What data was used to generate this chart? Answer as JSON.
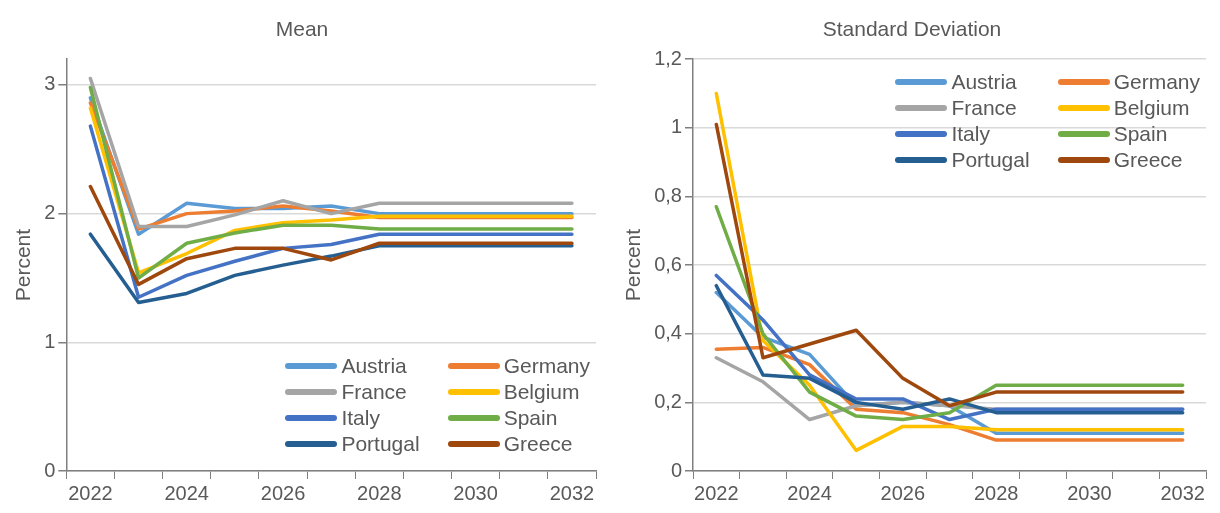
{
  "chart_data": [
    {
      "type": "line",
      "title": "Mean",
      "ylabel": "Percent",
      "categories": [
        "2022",
        null,
        "2024",
        null,
        "2026",
        null,
        "2028",
        null,
        "2030",
        null,
        "2032"
      ],
      "ylim": [
        0,
        3.2
      ],
      "yticks": [
        0,
        1,
        2,
        3
      ],
      "grid": "y",
      "legend": "bottom right",
      "series": [
        {
          "name": "Austria",
          "color": "#5b9bd5",
          "values": [
            2.9,
            1.84,
            2.08,
            2.04,
            2.04,
            2.06,
            2.0,
            2.0,
            2.0,
            2.0,
            2.0
          ]
        },
        {
          "name": "Germany",
          "color": "#ed7d31",
          "values": [
            2.86,
            1.88,
            2.0,
            2.02,
            2.06,
            2.02,
            1.97,
            1.97,
            1.97,
            1.97,
            1.97
          ]
        },
        {
          "name": "France",
          "color": "#a5a5a5",
          "values": [
            3.05,
            1.9,
            1.9,
            1.99,
            2.1,
            2.0,
            2.08,
            2.08,
            2.08,
            2.08,
            2.08
          ]
        },
        {
          "name": "Belgium",
          "color": "#ffc000",
          "values": [
            2.82,
            1.54,
            1.69,
            1.87,
            1.93,
            1.95,
            1.98,
            1.98,
            1.98,
            1.98,
            1.98
          ]
        },
        {
          "name": "Italy",
          "color": "#4472c4",
          "values": [
            2.68,
            1.35,
            1.52,
            1.63,
            1.73,
            1.76,
            1.84,
            1.84,
            1.84,
            1.84,
            1.84
          ]
        },
        {
          "name": "Spain",
          "color": "#70ad47",
          "values": [
            2.98,
            1.5,
            1.77,
            1.85,
            1.91,
            1.91,
            1.88,
            1.88,
            1.88,
            1.88,
            1.88
          ]
        },
        {
          "name": "Portugal",
          "color": "#255e91",
          "values": [
            1.84,
            1.31,
            1.38,
            1.52,
            1.6,
            1.67,
            1.75,
            1.75,
            1.75,
            1.75,
            1.75
          ]
        },
        {
          "name": "Greece",
          "color": "#9e480e",
          "values": [
            2.21,
            1.45,
            1.65,
            1.73,
            1.73,
            1.64,
            1.77,
            1.77,
            1.77,
            1.77,
            1.77
          ]
        }
      ]
    },
    {
      "type": "line",
      "title": "Standard Deviation",
      "ylabel": "Percent",
      "categories": [
        "2022",
        null,
        "2024",
        null,
        "2026",
        null,
        "2028",
        null,
        "2030",
        null,
        "2032"
      ],
      "ylim": [
        0,
        1.2
      ],
      "yticks": [
        0,
        {
          "value": 0.2,
          "label": "0,2"
        },
        {
          "value": 0.4,
          "label": "0,4"
        },
        {
          "value": 0.6,
          "label": "0,6"
        },
        {
          "value": 0.8,
          "label": "0,8"
        },
        1,
        {
          "value": 1.2,
          "label": "1,2"
        }
      ],
      "grid": "y",
      "legend": "top right",
      "series": [
        {
          "name": "Austria",
          "color": "#5b9bd5",
          "values": [
            0.52,
            0.39,
            0.34,
            0.19,
            0.2,
            0.19,
            0.11,
            0.11,
            0.11,
            0.11,
            0.11
          ]
        },
        {
          "name": "Germany",
          "color": "#ed7d31",
          "values": [
            0.355,
            0.36,
            0.31,
            0.18,
            0.17,
            0.135,
            0.09,
            0.09,
            0.09,
            0.09,
            0.09
          ]
        },
        {
          "name": "France",
          "color": "#a5a5a5",
          "values": [
            0.33,
            0.26,
            0.15,
            0.19,
            0.2,
            0.19,
            0.18,
            0.18,
            0.18,
            0.18,
            0.18
          ]
        },
        {
          "name": "Belgium",
          "color": "#ffc000",
          "values": [
            1.1,
            0.38,
            0.25,
            0.06,
            0.13,
            0.13,
            0.12,
            0.12,
            0.12,
            0.12,
            0.12
          ]
        },
        {
          "name": "Italy",
          "color": "#4472c4",
          "values": [
            0.57,
            0.44,
            0.28,
            0.21,
            0.21,
            0.15,
            0.18,
            0.18,
            0.18,
            0.18,
            0.18
          ]
        },
        {
          "name": "Spain",
          "color": "#70ad47",
          "values": [
            0.77,
            0.4,
            0.23,
            0.16,
            0.15,
            0.17,
            0.25,
            0.25,
            0.25,
            0.25,
            0.25
          ]
        },
        {
          "name": "Portugal",
          "color": "#255e91",
          "values": [
            0.54,
            0.28,
            0.27,
            0.2,
            0.18,
            0.21,
            0.17,
            0.17,
            0.17,
            0.17,
            0.17
          ]
        },
        {
          "name": "Greece",
          "color": "#9e480e",
          "values": [
            1.01,
            0.33,
            0.37,
            0.41,
            0.27,
            0.19,
            0.23,
            0.23,
            0.23,
            0.23,
            0.23
          ]
        }
      ]
    }
  ]
}
